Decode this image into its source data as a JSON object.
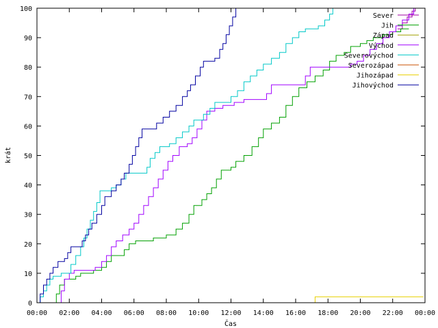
{
  "chart_data": {
    "type": "line",
    "title": "",
    "xlabel": "Čas",
    "ylabel": "krát",
    "xlim": [
      0,
      24
    ],
    "ylim": [
      0,
      100
    ],
    "x_ticks": [
      "00:00",
      "02:00",
      "04:00",
      "06:00",
      "08:00",
      "10:00",
      "12:00",
      "14:00",
      "16:00",
      "18:00",
      "20:00",
      "22:00",
      "00:00"
    ],
    "y_ticks": [
      "0",
      "10",
      "20",
      "30",
      "40",
      "50",
      "60",
      "70",
      "80",
      "90",
      "100"
    ],
    "grid": false,
    "legend_position": "top-right",
    "series": [
      {
        "name": "Sever",
        "color": "#a000a0",
        "points": [
          [
            22.3,
            93
          ],
          [
            22.6,
            95
          ],
          [
            22.9,
            97
          ],
          [
            23.2,
            99
          ],
          [
            23.4,
            100
          ]
        ]
      },
      {
        "name": "Jih",
        "color": "#00a000",
        "points": [
          [
            1.1,
            0
          ],
          [
            1.2,
            3
          ],
          [
            1.4,
            6
          ],
          [
            1.7,
            8
          ],
          [
            2.4,
            9
          ],
          [
            2.7,
            10
          ],
          [
            3.5,
            11
          ],
          [
            4.0,
            12
          ],
          [
            4.3,
            14
          ],
          [
            4.6,
            16
          ],
          [
            5.4,
            18
          ],
          [
            5.7,
            20
          ],
          [
            6.1,
            21
          ],
          [
            7.2,
            22
          ],
          [
            8.0,
            23
          ],
          [
            8.6,
            25
          ],
          [
            9.0,
            27
          ],
          [
            9.4,
            30
          ],
          [
            9.7,
            33
          ],
          [
            10.2,
            35
          ],
          [
            10.5,
            37
          ],
          [
            10.8,
            39
          ],
          [
            11.1,
            42
          ],
          [
            11.4,
            45
          ],
          [
            12.0,
            46
          ],
          [
            12.3,
            48
          ],
          [
            12.8,
            50
          ],
          [
            13.3,
            53
          ],
          [
            13.7,
            56
          ],
          [
            14.0,
            59
          ],
          [
            14.5,
            61
          ],
          [
            15.0,
            63
          ],
          [
            15.4,
            67
          ],
          [
            15.8,
            70
          ],
          [
            16.2,
            73
          ],
          [
            16.7,
            75
          ],
          [
            17.2,
            77
          ],
          [
            17.7,
            79
          ],
          [
            18.1,
            82
          ],
          [
            18.5,
            84
          ],
          [
            19.0,
            85
          ],
          [
            19.4,
            87
          ],
          [
            20.0,
            88
          ],
          [
            20.4,
            89
          ],
          [
            20.8,
            90
          ],
          [
            21.4,
            91
          ],
          [
            22.0,
            92
          ],
          [
            22.5,
            93
          ],
          [
            23.0,
            93
          ]
        ]
      },
      {
        "name": "Západ",
        "color": "#a0a000",
        "points": []
      },
      {
        "name": "Východ",
        "color": "#a000ff",
        "points": [
          [
            1.3,
            0
          ],
          [
            1.5,
            4
          ],
          [
            1.7,
            8
          ],
          [
            2.0,
            10
          ],
          [
            2.3,
            11
          ],
          [
            3.6,
            12
          ],
          [
            4.0,
            14
          ],
          [
            4.3,
            16
          ],
          [
            4.6,
            19
          ],
          [
            4.9,
            21
          ],
          [
            5.3,
            23
          ],
          [
            5.7,
            25
          ],
          [
            6.0,
            27
          ],
          [
            6.3,
            30
          ],
          [
            6.6,
            33
          ],
          [
            6.9,
            36
          ],
          [
            7.2,
            39
          ],
          [
            7.5,
            42
          ],
          [
            7.8,
            45
          ],
          [
            8.1,
            48
          ],
          [
            8.4,
            50
          ],
          [
            8.8,
            53
          ],
          [
            9.3,
            54
          ],
          [
            9.6,
            56
          ],
          [
            9.9,
            59
          ],
          [
            10.2,
            62
          ],
          [
            10.5,
            65
          ],
          [
            11.0,
            66
          ],
          [
            11.5,
            67
          ],
          [
            12.2,
            68
          ],
          [
            12.8,
            69
          ],
          [
            14.2,
            71
          ],
          [
            14.5,
            74
          ],
          [
            16.6,
            77
          ],
          [
            16.9,
            80
          ],
          [
            19.4,
            81
          ],
          [
            19.8,
            82
          ],
          [
            20.2,
            84
          ],
          [
            20.6,
            86
          ],
          [
            21.0,
            88
          ],
          [
            21.4,
            90
          ],
          [
            21.8,
            92
          ],
          [
            22.2,
            94
          ],
          [
            22.6,
            96
          ],
          [
            23.0,
            98
          ],
          [
            23.3,
            100
          ]
        ]
      },
      {
        "name": "Severovýchod",
        "color": "#00c8c8",
        "points": [
          [
            0.1,
            0
          ],
          [
            0.2,
            2
          ],
          [
            0.4,
            4
          ],
          [
            0.6,
            6
          ],
          [
            0.8,
            8
          ],
          [
            1.0,
            9
          ],
          [
            1.5,
            10
          ],
          [
            2.1,
            13
          ],
          [
            2.4,
            16
          ],
          [
            2.7,
            19
          ],
          [
            2.9,
            22
          ],
          [
            3.1,
            25
          ],
          [
            3.3,
            28
          ],
          [
            3.5,
            31
          ],
          [
            3.7,
            34
          ],
          [
            3.9,
            38
          ],
          [
            4.6,
            39
          ],
          [
            4.9,
            40
          ],
          [
            5.2,
            42
          ],
          [
            5.5,
            44
          ],
          [
            6.8,
            46
          ],
          [
            7.0,
            49
          ],
          [
            7.3,
            51
          ],
          [
            7.6,
            53
          ],
          [
            8.2,
            54
          ],
          [
            8.6,
            56
          ],
          [
            9.0,
            58
          ],
          [
            9.4,
            60
          ],
          [
            9.7,
            62
          ],
          [
            10.3,
            64
          ],
          [
            10.7,
            66
          ],
          [
            11.0,
            68
          ],
          [
            12.0,
            70
          ],
          [
            12.4,
            72
          ],
          [
            12.8,
            75
          ],
          [
            13.2,
            77
          ],
          [
            13.6,
            79
          ],
          [
            14.0,
            81
          ],
          [
            14.5,
            83
          ],
          [
            15.0,
            85
          ],
          [
            15.4,
            88
          ],
          [
            15.8,
            90
          ],
          [
            16.2,
            92
          ],
          [
            16.6,
            93
          ],
          [
            17.4,
            94
          ],
          [
            17.8,
            96
          ],
          [
            18.1,
            98
          ],
          [
            18.3,
            100
          ]
        ]
      },
      {
        "name": "Severozápad",
        "color": "#c85000",
        "points": []
      },
      {
        "name": "Jihozápad",
        "color": "#e8d000",
        "points": [
          [
            0,
            0
          ],
          [
            17.1,
            0
          ],
          [
            17.2,
            2
          ],
          [
            23.9,
            2
          ]
        ]
      },
      {
        "name": "Jihovýchod",
        "color": "#0000a0",
        "points": [
          [
            0.1,
            0
          ],
          [
            0.2,
            3
          ],
          [
            0.4,
            6
          ],
          [
            0.6,
            8
          ],
          [
            0.8,
            10
          ],
          [
            1.0,
            12
          ],
          [
            1.3,
            14
          ],
          [
            1.7,
            15
          ],
          [
            1.9,
            17
          ],
          [
            2.1,
            19
          ],
          [
            2.8,
            21
          ],
          [
            3.0,
            23
          ],
          [
            3.2,
            25
          ],
          [
            3.4,
            27
          ],
          [
            3.7,
            30
          ],
          [
            4.0,
            33
          ],
          [
            4.2,
            36
          ],
          [
            4.6,
            38
          ],
          [
            4.9,
            40
          ],
          [
            5.2,
            42
          ],
          [
            5.4,
            44
          ],
          [
            5.7,
            47
          ],
          [
            5.9,
            50
          ],
          [
            6.1,
            53
          ],
          [
            6.3,
            56
          ],
          [
            6.5,
            59
          ],
          [
            7.4,
            61
          ],
          [
            7.8,
            63
          ],
          [
            8.2,
            65
          ],
          [
            8.6,
            67
          ],
          [
            9.0,
            70
          ],
          [
            9.3,
            72
          ],
          [
            9.5,
            74
          ],
          [
            9.8,
            77
          ],
          [
            10.1,
            80
          ],
          [
            10.3,
            82
          ],
          [
            11.0,
            83
          ],
          [
            11.3,
            86
          ],
          [
            11.5,
            88
          ],
          [
            11.7,
            91
          ],
          [
            11.9,
            94
          ],
          [
            12.1,
            97
          ],
          [
            12.3,
            100
          ]
        ]
      }
    ]
  }
}
